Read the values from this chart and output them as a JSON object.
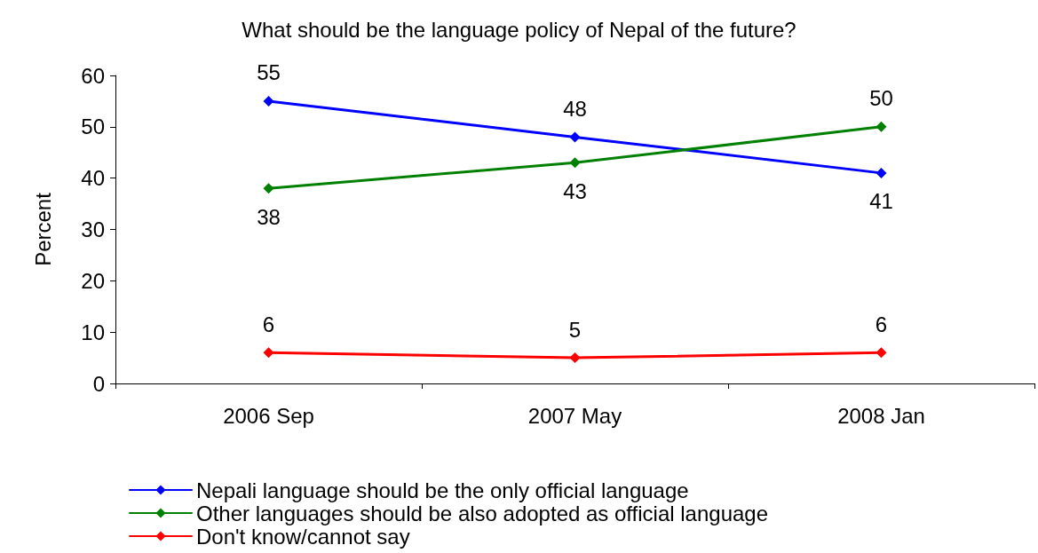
{
  "chart_data": {
    "type": "line",
    "title": "What should be the language policy of Nepal of the future?",
    "ylabel": "Percent",
    "categories": [
      "2006 Sep",
      "2007 May",
      "2008 Jan"
    ],
    "series": [
      {
        "name": "Nepali language should be the only official language",
        "color": "#0000ff",
        "values": [
          55,
          48,
          41
        ]
      },
      {
        "name": "Other languages should be also adopted as official language",
        "color": "#008000",
        "values": [
          38,
          43,
          50
        ]
      },
      {
        "name": "Don't know/cannot say",
        "color": "#ff0000",
        "values": [
          6,
          5,
          6
        ]
      }
    ],
    "ylim": [
      0,
      60
    ],
    "yticks": [
      0,
      10,
      20,
      30,
      40,
      50,
      60
    ],
    "grid": false,
    "legend": "bottom left",
    "marker": "diamond",
    "line_style": "solid",
    "data_labels": true
  }
}
